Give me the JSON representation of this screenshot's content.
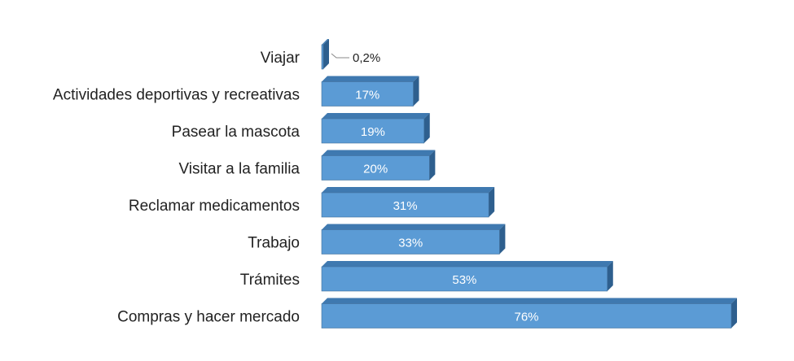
{
  "chart_data": {
    "type": "bar",
    "orientation": "horizontal",
    "style": "3d",
    "categories": [
      "Viajar",
      "Actividades deportivas y recreativas",
      "Pasear la mascota",
      "Visitar a la familia",
      "Reclamar medicamentos",
      "Trabajo",
      "Trámites",
      "Compras y hacer mercado"
    ],
    "values": [
      0.2,
      17,
      19,
      20,
      31,
      33,
      53,
      76
    ],
    "data_labels": [
      "0,2%",
      "17%",
      "19%",
      "20%",
      "31%",
      "33%",
      "53%",
      "76%"
    ],
    "xlim": [
      0,
      76
    ],
    "grid": false,
    "legend": "none",
    "title": "",
    "xlabel": "",
    "ylabel": "",
    "colors": {
      "bar_front": "#5b9bd5",
      "bar_top": "#3f79b0",
      "bar_side": "#2e5f8e",
      "bar_edge": "#41719c"
    }
  }
}
